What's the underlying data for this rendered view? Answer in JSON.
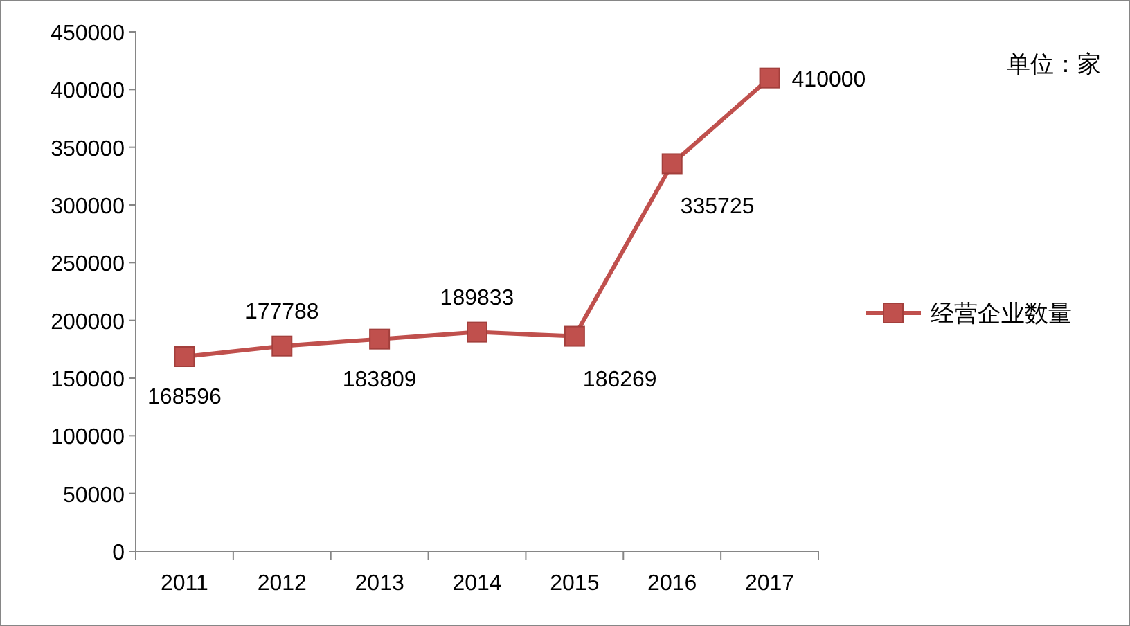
{
  "chart_data": {
    "type": "line",
    "categories": [
      "2011",
      "2012",
      "2013",
      "2014",
      "2015",
      "2016",
      "2017"
    ],
    "series": [
      {
        "name": "经营企业数量",
        "color": "#c0504d",
        "values": [
          168596,
          177788,
          183809,
          189833,
          186269,
          335725,
          410000
        ]
      }
    ],
    "ylim": [
      0,
      450000
    ],
    "yticks": [
      0,
      50000,
      100000,
      150000,
      200000,
      250000,
      300000,
      350000,
      400000,
      450000
    ],
    "marker": "square",
    "line_style": "solid",
    "data_labels": true,
    "grid": false,
    "legend": "right",
    "annotations": [
      "单位：家"
    ]
  }
}
